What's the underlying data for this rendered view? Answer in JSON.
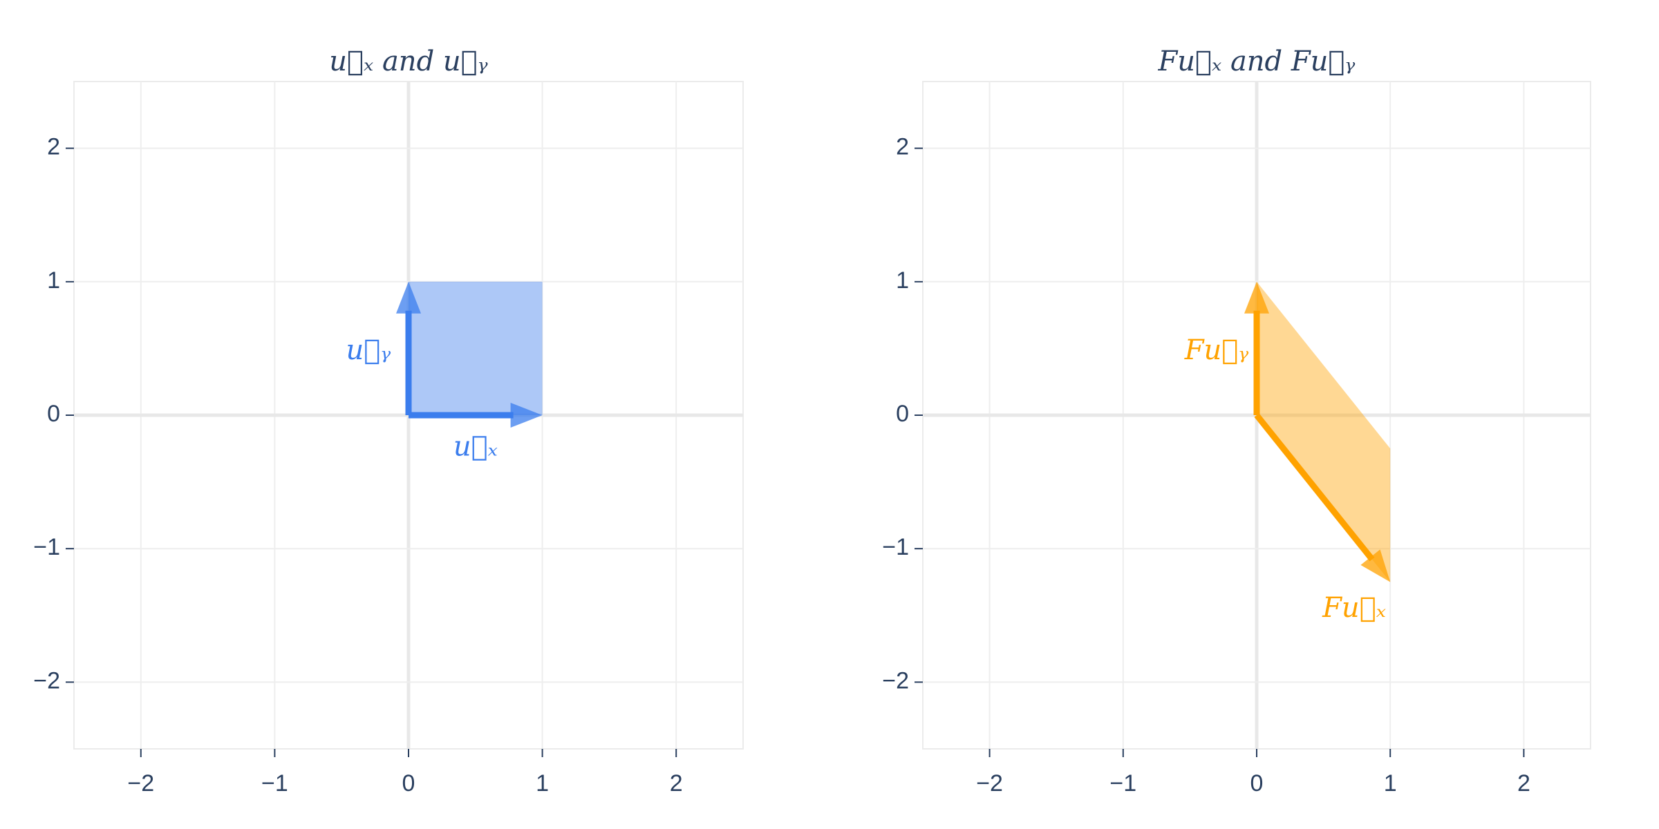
{
  "chart_data": [
    {
      "type": "vector",
      "title": "u⃗ₓ and u⃗ᵧ",
      "color": "#3b7ded",
      "fill_color": "rgba(59,125,237,0.42)",
      "vectors": [
        {
          "name": "u⃗ₓ",
          "x": 1,
          "y": 0
        },
        {
          "name": "u⃗ᵧ",
          "x": 0,
          "y": 1
        }
      ],
      "xlim": [
        -2.5,
        2.5
      ],
      "ylim": [
        -2.5,
        2.5
      ],
      "xticks": [
        {
          "value": -2,
          "label": "−2"
        },
        {
          "value": -1,
          "label": "−1"
        },
        0,
        1,
        2
      ],
      "yticks": [
        {
          "value": -2,
          "label": "−2"
        },
        {
          "value": -1,
          "label": "−1"
        },
        0,
        1,
        2
      ],
      "grid": true
    },
    {
      "type": "vector",
      "title": "Fu⃗ₓ and Fu⃗ᵧ",
      "color": "#ffa200",
      "fill_color": "rgba(255,162,0,0.42)",
      "vectors": [
        {
          "name": "Fu⃗ₓ",
          "x": 1,
          "y": -1.25
        },
        {
          "name": "Fu⃗ᵧ",
          "x": 0,
          "y": 1
        }
      ],
      "xlim": [
        -2.5,
        2.5
      ],
      "ylim": [
        -2.5,
        2.5
      ],
      "xticks": [
        {
          "value": -2,
          "label": "−2"
        },
        {
          "value": -1,
          "label": "−1"
        },
        0,
        1,
        2
      ],
      "yticks": [
        {
          "value": -2,
          "label": "−2"
        },
        {
          "value": -1,
          "label": "−1"
        },
        0,
        1,
        2
      ],
      "grid": true
    }
  ]
}
